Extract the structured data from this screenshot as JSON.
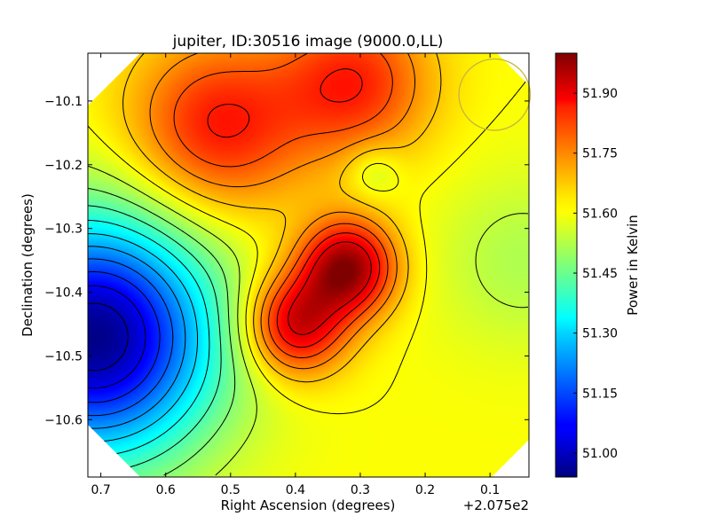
{
  "chart_data": {
    "type": "heatmap",
    "title": "jupiter, ID:30516 image (9000.0,LL)",
    "xlabel": "Right Ascension (degrees)",
    "ylabel": "Declination (degrees)",
    "x_offset_label": "+2.075e2",
    "xlim": [
      0.72,
      0.04
    ],
    "ylim": [
      -10.69,
      -10.025
    ],
    "x_ticks": [
      0.7,
      0.6,
      0.5,
      0.4,
      0.3,
      0.2,
      0.1
    ],
    "x_tick_labels": [
      "0.7",
      "0.6",
      "0.5",
      "0.4",
      "0.3",
      "0.2",
      "0.1"
    ],
    "y_ticks": [
      -10.1,
      -10.2,
      -10.3,
      -10.4,
      -10.5,
      -10.6
    ],
    "y_tick_labels": [
      "−10.1",
      "−10.2",
      "−10.3",
      "−10.4",
      "−10.5",
      "−10.6"
    ],
    "colorbar": {
      "label": "Power in Kelvin",
      "range": [
        50.94,
        52.0
      ],
      "ticks": [
        51.0,
        51.15,
        51.3,
        51.45,
        51.6,
        51.75,
        51.9
      ],
      "tick_labels": [
        "51.00",
        "51.15",
        "51.30",
        "51.45",
        "51.60",
        "51.75",
        "51.90"
      ],
      "colormap": "jet"
    },
    "features": [
      {
        "kind": "maximum",
        "x": 0.32,
        "y": -10.36,
        "value": 51.98
      },
      {
        "kind": "maximum",
        "x": 0.4,
        "y": -10.45,
        "value": 51.93
      },
      {
        "kind": "high",
        "x": 0.52,
        "y": -10.14,
        "value": 51.85
      },
      {
        "kind": "high",
        "x": 0.31,
        "y": -10.07,
        "value": 51.83
      },
      {
        "kind": "minimum",
        "x": 0.71,
        "y": -10.47,
        "value": 50.95
      },
      {
        "kind": "local-minimum",
        "x": 0.28,
        "y": -10.21,
        "value": 51.52
      },
      {
        "kind": "low",
        "x": 0.05,
        "y": -10.35,
        "value": 51.52
      }
    ],
    "beam_circle": {
      "x": 0.093,
      "y": -10.09,
      "radius_deg": 0.055,
      "color": "#c8b43c"
    },
    "grid": false,
    "legend": "none"
  }
}
